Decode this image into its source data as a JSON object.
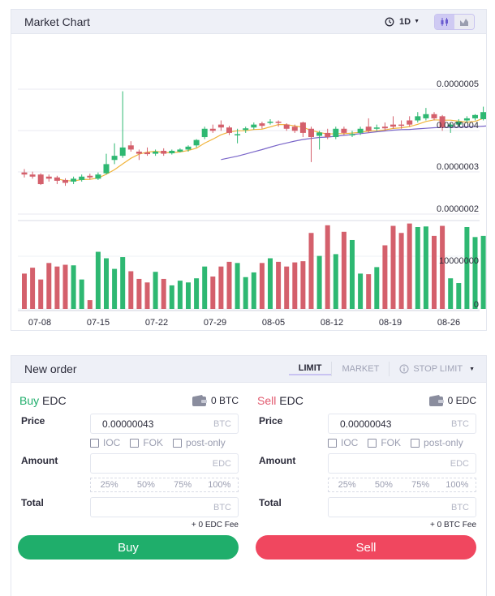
{
  "chart_panel": {
    "title": "Market Chart",
    "interval": "1D",
    "icons": {
      "interval": "clock-icon",
      "candles": "candlestick-icon",
      "area": "area-chart-icon"
    }
  },
  "chart_data": {
    "type": "candlestick",
    "x_tick_labels": [
      "07-08",
      "07-15",
      "07-22",
      "07-29",
      "08-05",
      "08-12",
      "08-19",
      "08-26"
    ],
    "price_tick_labels": [
      "0.0000005",
      "0.0000004",
      "0.0000003",
      "0.0000002"
    ],
    "price_axis": {
      "min": 2e-07,
      "max": 5e-07
    },
    "volume_tick_labels": [
      "10000000",
      "0"
    ],
    "volume_axis": {
      "min": 0,
      "max": 15000000
    },
    "grid": true,
    "colors": {
      "up": "#2eb872",
      "down": "#d4606c",
      "ma_short": "#f1b43b",
      "ma_long": "#7a66c9"
    },
    "candles": [
      {
        "o": 3.0,
        "c": 2.95,
        "h": 3.08,
        "l": 2.88
      },
      {
        "o": 2.95,
        "c": 2.9,
        "h": 3.02,
        "l": 2.85
      },
      {
        "o": 2.95,
        "c": 2.72,
        "h": 2.98,
        "l": 2.7
      },
      {
        "o": 2.9,
        "c": 2.85,
        "h": 2.95,
        "l": 2.78
      },
      {
        "o": 2.88,
        "c": 2.8,
        "h": 2.92,
        "l": 2.72
      },
      {
        "o": 2.82,
        "c": 2.75,
        "h": 2.86,
        "l": 2.68
      },
      {
        "o": 2.78,
        "c": 2.85,
        "h": 2.9,
        "l": 2.72
      },
      {
        "o": 2.82,
        "c": 2.9,
        "h": 2.95,
        "l": 2.78
      },
      {
        "o": 2.92,
        "c": 2.88,
        "h": 2.97,
        "l": 2.83
      },
      {
        "o": 2.85,
        "c": 2.95,
        "h": 3.0,
        "l": 2.82
      },
      {
        "o": 2.98,
        "c": 3.2,
        "h": 3.45,
        "l": 2.95
      },
      {
        "o": 3.3,
        "c": 3.4,
        "h": 3.7,
        "l": 3.2
      },
      {
        "o": 3.4,
        "c": 3.6,
        "h": 4.95,
        "l": 3.35
      },
      {
        "o": 3.65,
        "c": 3.55,
        "h": 3.75,
        "l": 3.5
      },
      {
        "o": 3.5,
        "c": 3.45,
        "h": 3.55,
        "l": 3.3
      },
      {
        "o": 3.48,
        "c": 3.44,
        "h": 3.6,
        "l": 3.4
      },
      {
        "o": 3.45,
        "c": 3.5,
        "h": 3.55,
        "l": 3.4
      },
      {
        "o": 3.52,
        "c": 3.45,
        "h": 3.58,
        "l": 3.4
      },
      {
        "o": 3.46,
        "c": 3.52,
        "h": 3.55,
        "l": 3.43
      },
      {
        "o": 3.5,
        "c": 3.55,
        "h": 3.58,
        "l": 3.48
      },
      {
        "o": 3.55,
        "c": 3.62,
        "h": 3.65,
        "l": 3.5
      },
      {
        "o": 3.65,
        "c": 3.78,
        "h": 3.8,
        "l": 3.6
      },
      {
        "o": 3.85,
        "c": 4.05,
        "h": 4.1,
        "l": 3.8
      },
      {
        "o": 4.05,
        "c": 4.0,
        "h": 4.15,
        "l": 3.95
      },
      {
        "o": 4.15,
        "c": 4.08,
        "h": 4.25,
        "l": 4.0
      },
      {
        "o": 4.08,
        "c": 3.95,
        "h": 4.12,
        "l": 3.9
      },
      {
        "o": 3.9,
        "c": 3.92,
        "h": 4.05,
        "l": 3.7
      },
      {
        "o": 4.02,
        "c": 4.06,
        "h": 4.1,
        "l": 3.95
      },
      {
        "o": 4.08,
        "c": 4.15,
        "h": 4.2,
        "l": 4.03
      },
      {
        "o": 4.18,
        "c": 4.12,
        "h": 4.22,
        "l": 4.05
      },
      {
        "o": 4.2,
        "c": 4.22,
        "h": 4.28,
        "l": 4.15
      },
      {
        "o": 4.22,
        "c": 4.2,
        "h": 4.25,
        "l": 4.1
      },
      {
        "o": 4.15,
        "c": 4.05,
        "h": 4.18,
        "l": 4.0
      },
      {
        "o": 4.1,
        "c": 4.0,
        "h": 4.15,
        "l": 3.95
      },
      {
        "o": 4.2,
        "c": 3.95,
        "h": 4.22,
        "l": 3.85
      },
      {
        "o": 4.05,
        "c": 3.85,
        "h": 4.1,
        "l": 3.25
      },
      {
        "o": 3.88,
        "c": 3.96,
        "h": 4.0,
        "l": 3.55
      },
      {
        "o": 3.95,
        "c": 3.85,
        "h": 4.05,
        "l": 3.8
      },
      {
        "o": 3.85,
        "c": 4.05,
        "h": 4.1,
        "l": 3.8
      },
      {
        "o": 4.05,
        "c": 3.95,
        "h": 4.1,
        "l": 3.9
      },
      {
        "o": 3.9,
        "c": 3.92,
        "h": 4.0,
        "l": 3.85
      },
      {
        "o": 3.95,
        "c": 4.05,
        "h": 4.1,
        "l": 3.9
      },
      {
        "o": 4.1,
        "c": 4.0,
        "h": 4.3,
        "l": 3.95
      },
      {
        "o": 4.05,
        "c": 4.08,
        "h": 4.15,
        "l": 4.0
      },
      {
        "o": 4.1,
        "c": 4.06,
        "h": 4.2,
        "l": 4.0
      },
      {
        "o": 4.15,
        "c": 4.1,
        "h": 4.35,
        "l": 4.05
      },
      {
        "o": 4.15,
        "c": 4.12,
        "h": 4.25,
        "l": 4.05
      },
      {
        "o": 4.25,
        "c": 4.15,
        "h": 4.35,
        "l": 4.1
      },
      {
        "o": 4.25,
        "c": 4.35,
        "h": 4.45,
        "l": 4.2
      },
      {
        "o": 4.3,
        "c": 4.4,
        "h": 4.55,
        "l": 4.25
      },
      {
        "o": 4.4,
        "c": 4.3,
        "h": 4.45,
        "l": 4.25
      },
      {
        "o": 4.35,
        "c": 4.08,
        "h": 4.38,
        "l": 4.0
      },
      {
        "o": 4.1,
        "c": 4.15,
        "h": 4.2,
        "l": 3.95
      },
      {
        "o": 4.15,
        "c": 4.22,
        "h": 4.28,
        "l": 4.1
      },
      {
        "o": 4.25,
        "c": 4.3,
        "h": 4.35,
        "l": 4.2
      },
      {
        "o": 4.3,
        "c": 4.38,
        "h": 4.4,
        "l": 4.25
      },
      {
        "o": 4.28,
        "c": 4.45,
        "h": 4.58,
        "l": 4.25
      },
      {
        "o": 4.45,
        "c": 4.35,
        "h": 4.5,
        "l": 4.3
      },
      {
        "o": 4.35,
        "c": 4.3,
        "h": 4.48,
        "l": 4.25
      },
      {
        "o": 4.42,
        "c": 4.2,
        "h": 4.45,
        "l": 4.1
      }
    ],
    "volumes": [
      6.0,
      7.0,
      5.0,
      7.8,
      7.2,
      7.5,
      7.4,
      5.0,
      1.5,
      9.7,
      8.6,
      6.8,
      8.8,
      6.4,
      5.1,
      4.5,
      6.3,
      5.1,
      4.0,
      4.8,
      4.5,
      5.2,
      7.2,
      5.5,
      7.2,
      8.0,
      7.8,
      5.4,
      6.2,
      7.8,
      8.6,
      8.0,
      7.2,
      7.9,
      8.1,
      12.9,
      9.0,
      14.2,
      9.3,
      13.1,
      11.7,
      6.0,
      5.9,
      7.1,
      10.8,
      14.1,
      12.9,
      14.5,
      13.9,
      14.0,
      12.4,
      14.1,
      5.2,
      4.4,
      13.9,
      12.2,
      12.4,
      14.6,
      13.6,
      3.4
    ]
  },
  "order_panel": {
    "title": "New order",
    "tabs": {
      "limit": "LIMIT",
      "market": "MARKET",
      "stop_limit": "STOP LIMIT"
    },
    "buy": {
      "side": "Buy",
      "asset": "EDC",
      "balance": "0 BTC",
      "price_label": "Price",
      "price_value": "0.00000043",
      "price_unit": "BTC",
      "options": [
        "IOC",
        "FOK",
        "post-only"
      ],
      "amount_label": "Amount",
      "amount_unit": "EDC",
      "percents": [
        "25%",
        "50%",
        "75%",
        "100%"
      ],
      "total_label": "Total",
      "total_unit": "BTC",
      "fee": "+ 0 EDC Fee",
      "button": "Buy"
    },
    "sell": {
      "side": "Sell",
      "asset": "EDC",
      "balance": "0 EDC",
      "price_label": "Price",
      "price_value": "0.00000043",
      "price_unit": "BTC",
      "options": [
        "IOC",
        "FOK",
        "post-only"
      ],
      "amount_label": "Amount",
      "amount_unit": "EDC",
      "percents": [
        "25%",
        "50%",
        "75%",
        "100%"
      ],
      "total_label": "Total",
      "total_unit": "BTC",
      "fee": "+ 0 BTC Fee",
      "button": "Sell"
    }
  }
}
